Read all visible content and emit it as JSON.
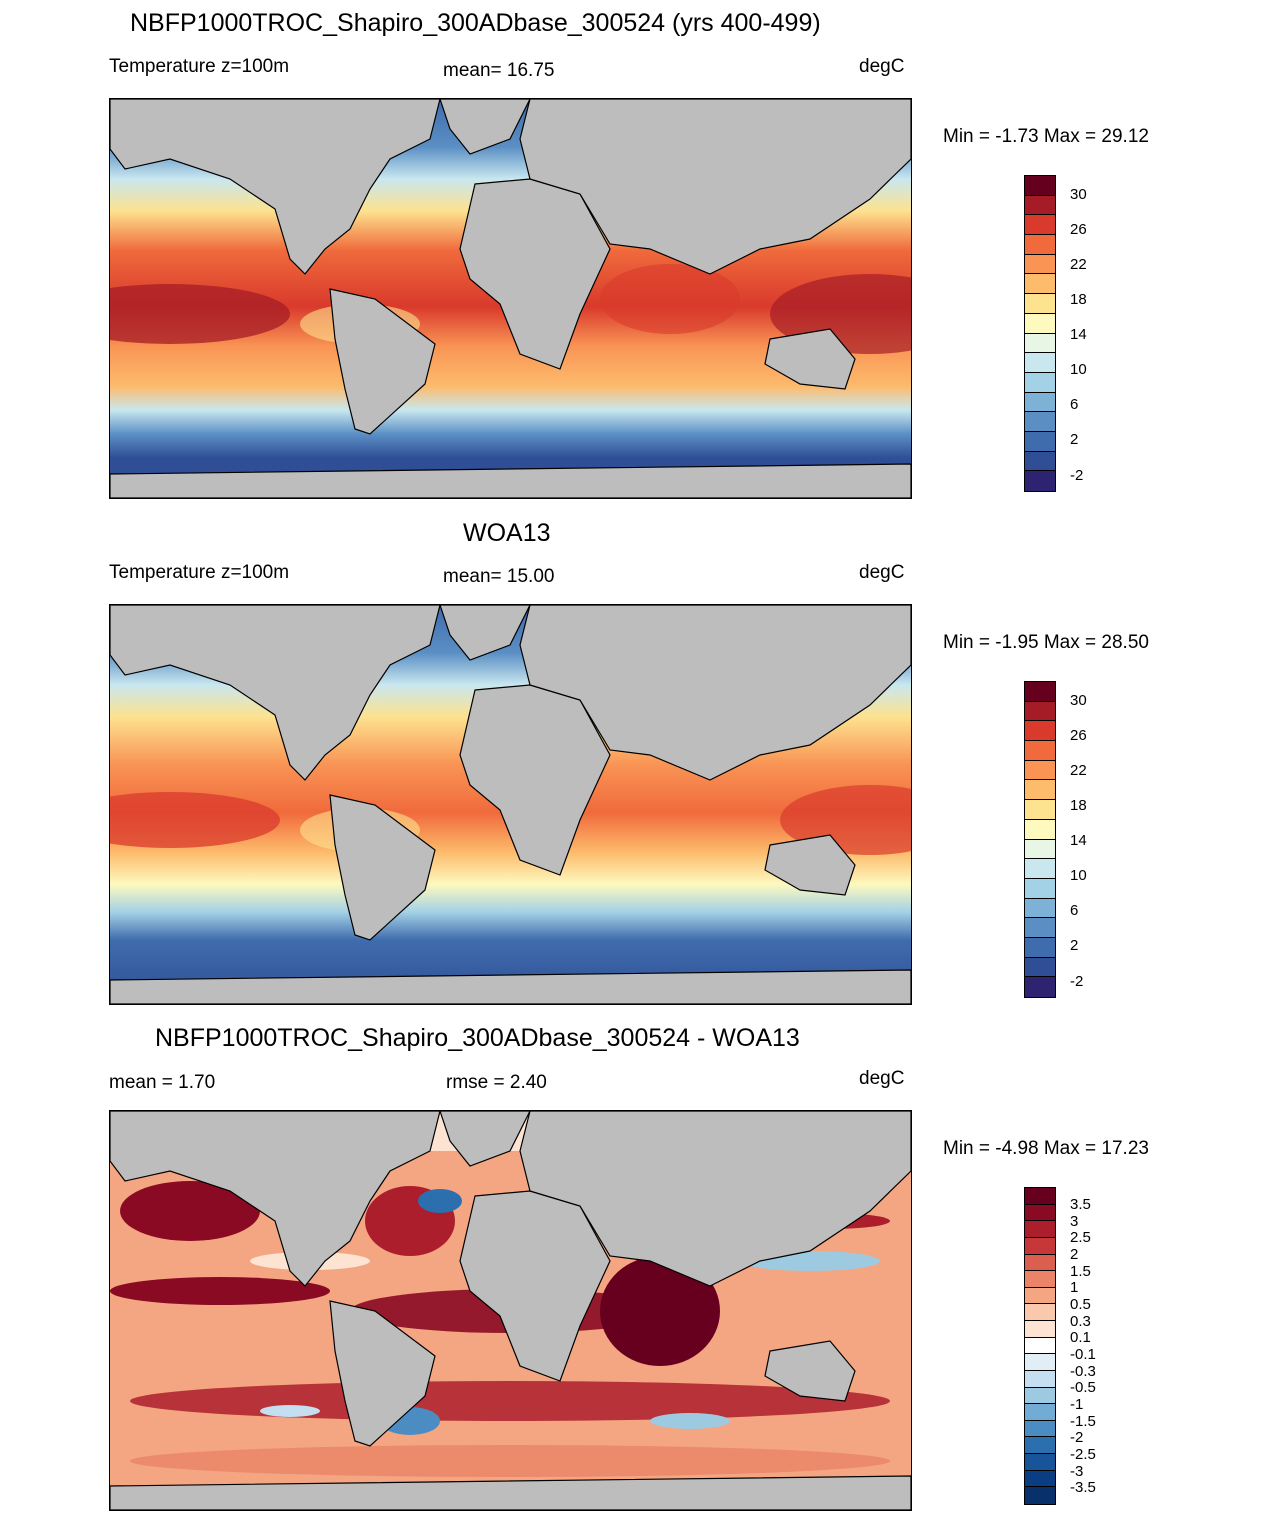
{
  "panels": [
    {
      "title": "NBFP1000TROC_Shapiro_300ADbase_300524 (yrs 400-499)",
      "left_label": "Temperature z=100m",
      "center_label": "mean=  16.75",
      "units": "degC",
      "minmax": "Min =  -1.73 Max =  29.12",
      "colorbar": {
        "colors": [
          "#65001e",
          "#a61c26",
          "#d93a2c",
          "#f06a3c",
          "#f99455",
          "#fdbb6c",
          "#fde28f",
          "#fdf9bf",
          "#e8f6e6",
          "#c8e7ef",
          "#a3d1e6",
          "#7db2d6",
          "#5b8fc4",
          "#3f6cad",
          "#2f4e95",
          "#2e2370"
        ],
        "labels": [
          "30",
          "26",
          "22",
          "18",
          "14",
          "10",
          "6",
          "2",
          "-2"
        ]
      }
    },
    {
      "title": "WOA13",
      "left_label": "Temperature z=100m",
      "center_label": "mean=  15.00",
      "units": "degC",
      "minmax": "Min =  -1.95 Max =  28.50",
      "colorbar": {
        "colors": [
          "#65001e",
          "#a61c26",
          "#d93a2c",
          "#f06a3c",
          "#f99455",
          "#fdbb6c",
          "#fde28f",
          "#fdf9bf",
          "#e8f6e6",
          "#c8e7ef",
          "#a3d1e6",
          "#7db2d6",
          "#5b8fc4",
          "#3f6cad",
          "#2f4e95",
          "#2e2370"
        ],
        "labels": [
          "30",
          "26",
          "22",
          "18",
          "14",
          "10",
          "6",
          "2",
          "-2"
        ]
      }
    },
    {
      "title": "NBFP1000TROC_Shapiro_300ADbase_300524 - WOA13",
      "left_label": "mean =   1.70",
      "center_label": "rmse =   2.40",
      "units": "degC",
      "minmax": "Min =  -4.98 Max =  17.23",
      "colorbar": {
        "colors": [
          "#67001f",
          "#8b0a23",
          "#ad1e2d",
          "#c7373a",
          "#db5e4f",
          "#ea8367",
          "#f4a582",
          "#f9c8ad",
          "#fde3d2",
          "#ffffff",
          "#e2eef5",
          "#c5def0",
          "#9ecae1",
          "#72abd3",
          "#4b8dc2",
          "#2c6fae",
          "#17549a",
          "#0b3d82",
          "#08306b"
        ],
        "labels": [
          "3.5",
          "3",
          "2.5",
          "2",
          "1.5",
          "1",
          "0.5",
          "0.3",
          "0.1",
          "-0.1",
          "-0.3",
          "-0.5",
          "-1",
          "-1.5",
          "-2",
          "-2.5",
          "-3",
          "-3.5"
        ]
      }
    }
  ]
}
